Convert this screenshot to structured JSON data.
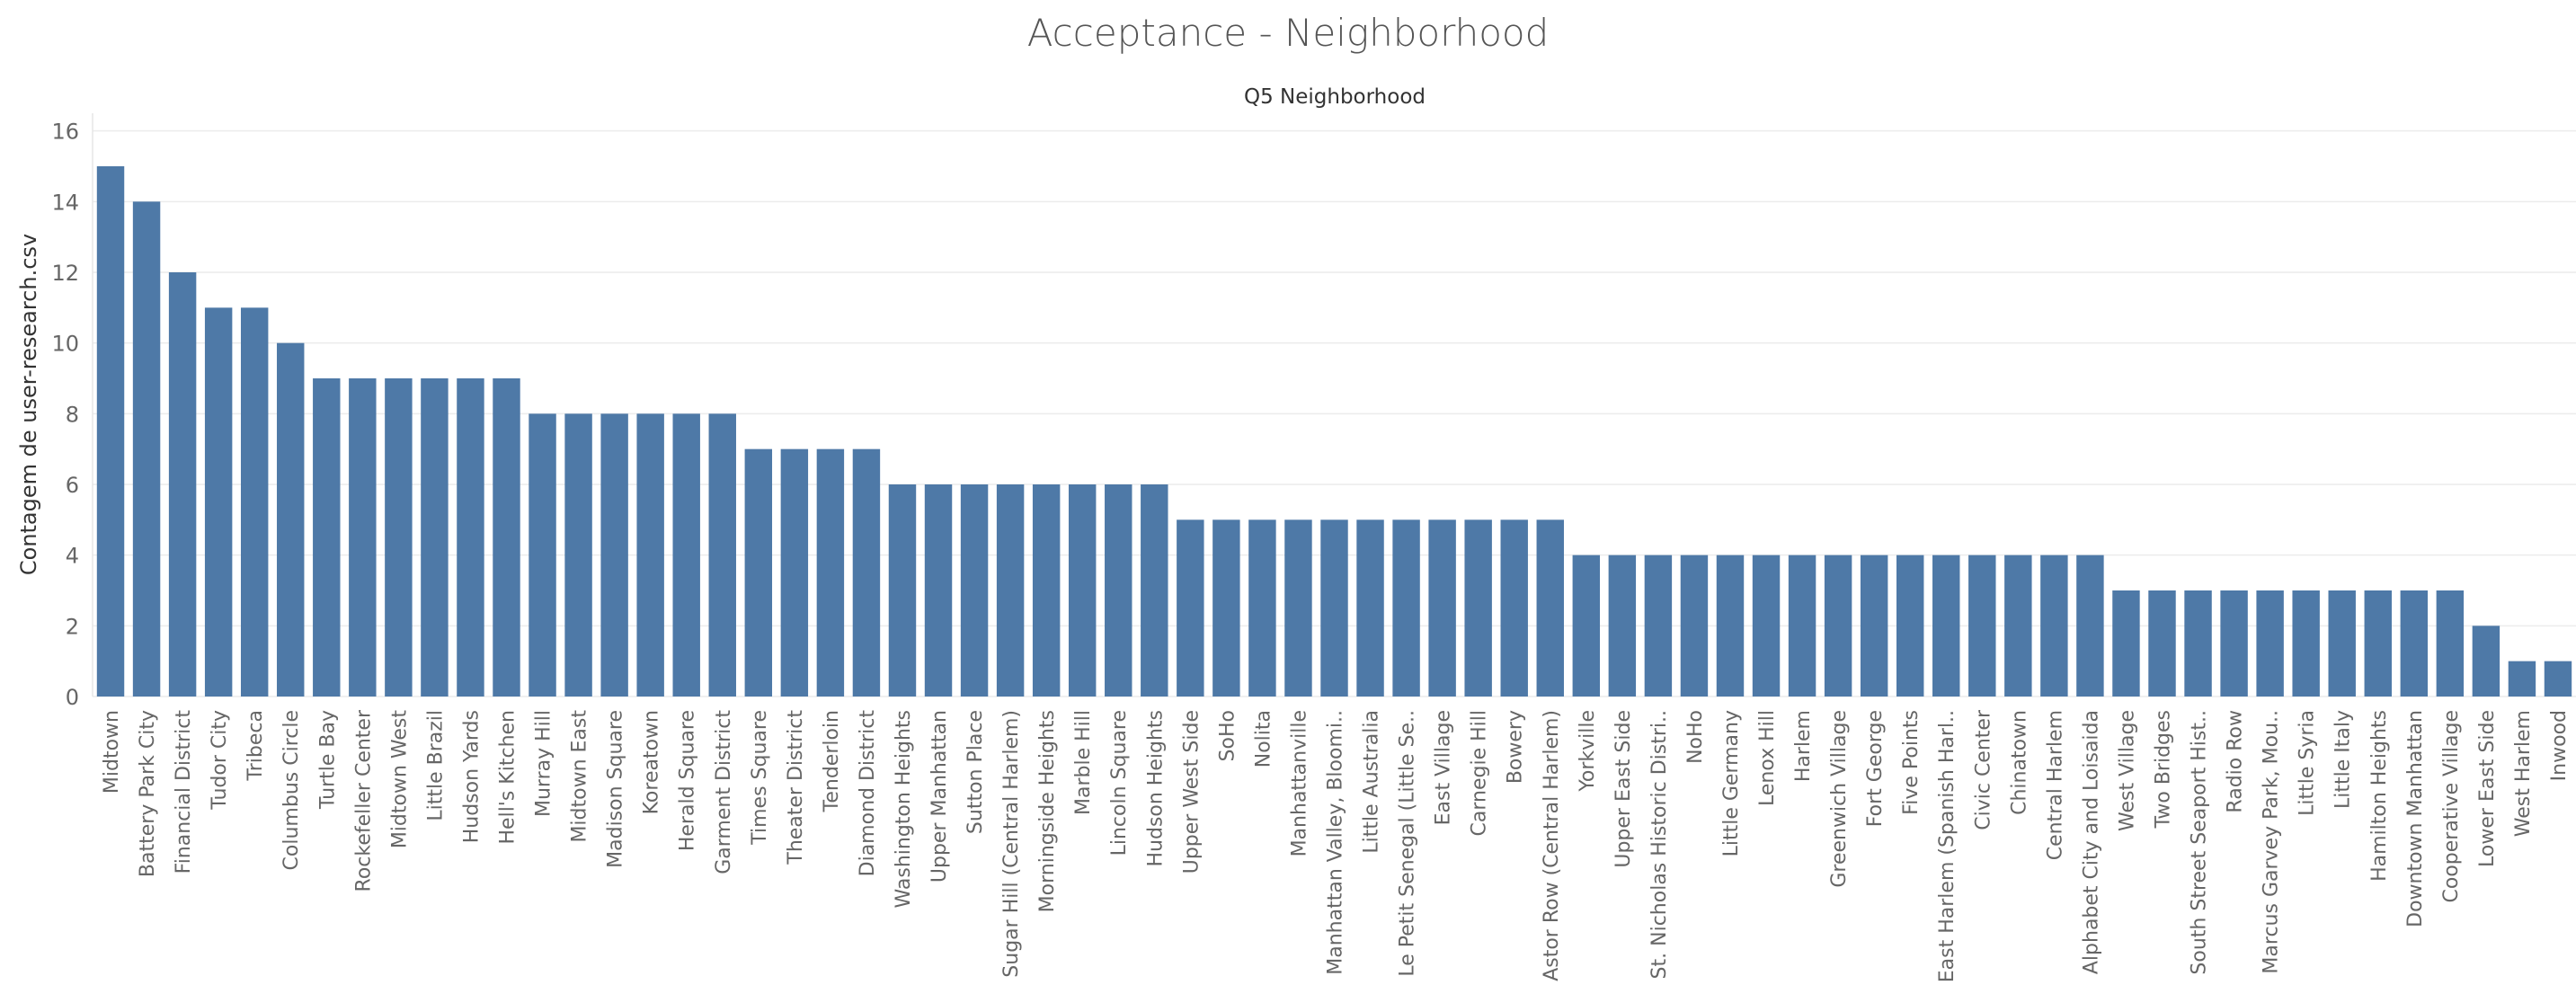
{
  "chart_data": {
    "type": "bar",
    "title": "Acceptance - Neighborhood",
    "subtitle": "Q5 Neighborhood",
    "xlabel": "",
    "ylabel": "Contagem de user-research.csv",
    "ylim": [
      0,
      16.5
    ],
    "yticks": [
      0,
      2,
      4,
      6,
      8,
      10,
      12,
      14,
      16
    ],
    "grid": true,
    "bar_color": "#4e79a7",
    "categories": [
      "Midtown",
      "Battery Park City",
      "Financial District",
      "Tudor City",
      "Tribeca",
      "Columbus Circle",
      "Turtle Bay",
      "Rockefeller Center",
      "Midtown West",
      "Little Brazil",
      "Hudson Yards",
      "Hell's Kitchen",
      "Murray Hill",
      "Midtown East",
      "Madison Square",
      "Koreatown",
      "Herald Square",
      "Garment District",
      "Times Square",
      "Theater District",
      "Tenderloin",
      "Diamond District",
      "Washington Heights",
      "Upper Manhattan",
      "Sutton Place",
      "Sugar Hill (Central Harlem)",
      "Morningside Heights",
      "Marble Hill",
      "Lincoln Square",
      "Hudson Heights",
      "Upper West Side",
      "SoHo",
      "Nolita",
      "Manhattanville",
      "Manhattan Valley, Bloomi..",
      "Little Australia",
      "Le Petit Senegal (Little Se..",
      "East Village",
      "Carnegie Hill",
      "Bowery",
      "Astor Row (Central Harlem)",
      "Yorkville",
      "Upper East Side",
      "St. Nicholas Historic Distri..",
      "NoHo",
      "Little Germany",
      "Lenox Hill",
      "Harlem",
      "Greenwich Village",
      "Fort George",
      "Five Points",
      "East Harlem (Spanish Harl..",
      "Civic Center",
      "Chinatown",
      "Central Harlem",
      "Alphabet City and Loisaida",
      "West Village",
      "Two Bridges",
      "South Street Seaport Hist..",
      "Radio Row",
      "Marcus Garvey Park, Mou..",
      "Little Syria",
      "Little Italy",
      "Hamilton Heights",
      "Downtown Manhattan",
      "Cooperative Village",
      "Lower East Side",
      "West Harlem",
      "Inwood"
    ],
    "values": [
      15,
      14,
      12,
      11,
      11,
      10,
      9,
      9,
      9,
      9,
      9,
      9,
      8,
      8,
      8,
      8,
      8,
      8,
      7,
      7,
      7,
      7,
      6,
      6,
      6,
      6,
      6,
      6,
      6,
      6,
      5,
      5,
      5,
      5,
      5,
      5,
      5,
      5,
      5,
      5,
      5,
      4,
      4,
      4,
      4,
      4,
      4,
      4,
      4,
      4,
      4,
      4,
      4,
      4,
      4,
      4,
      3,
      3,
      3,
      3,
      3,
      3,
      3,
      3,
      3,
      3,
      2,
      1,
      1
    ]
  }
}
